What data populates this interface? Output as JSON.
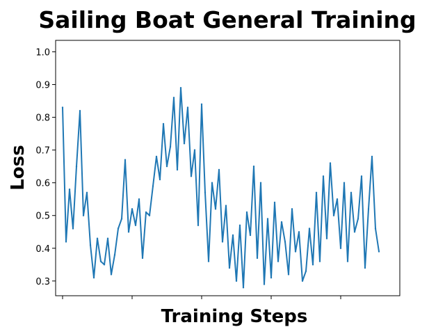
{
  "chart_data": {
    "type": "line",
    "title": "Sailing Boat General Training",
    "xlabel": "Training Steps",
    "ylabel": "Loss",
    "ylim": [
      0.255,
      1.035
    ],
    "xlim": [
      -10,
      485
    ],
    "yticks": [
      0.3,
      0.4,
      0.5,
      0.6,
      0.7,
      0.8,
      0.9,
      1.0
    ],
    "ytick_labels": [
      "0.3",
      "0.4",
      "0.5",
      "0.6",
      "0.7",
      "0.8",
      "0.9",
      "1.0"
    ],
    "xticks": [
      0,
      100,
      200,
      300,
      400
    ],
    "xtick_labels": [
      "",
      "",
      "",
      "",
      ""
    ],
    "grid": false,
    "series": [
      {
        "color": "#1f77b4",
        "x": [
          0,
          5,
          10,
          15,
          20,
          25,
          30,
          35,
          40,
          45,
          50,
          55,
          60,
          65,
          70,
          75,
          80,
          85,
          90,
          95,
          100,
          105,
          110,
          115,
          120,
          125,
          130,
          135,
          140,
          145,
          150,
          155,
          160,
          165,
          170,
          175,
          180,
          185,
          190,
          195,
          200,
          205,
          210,
          215,
          220,
          225,
          230,
          235,
          240,
          245,
          250,
          255,
          260,
          265,
          270,
          275,
          280,
          285,
          290,
          295,
          300,
          305,
          310,
          315,
          320,
          325,
          330,
          335,
          340,
          345,
          350,
          355,
          360,
          365,
          370,
          375,
          380,
          385,
          390,
          395,
          400,
          405,
          410,
          415,
          420,
          425,
          430,
          435,
          440,
          445,
          450,
          455
        ],
        "y": [
          0.83,
          0.42,
          0.58,
          0.46,
          0.65,
          0.82,
          0.5,
          0.57,
          0.41,
          0.31,
          0.43,
          0.36,
          0.35,
          0.43,
          0.32,
          0.38,
          0.46,
          0.49,
          0.67,
          0.45,
          0.52,
          0.47,
          0.55,
          0.37,
          0.51,
          0.5,
          0.59,
          0.68,
          0.61,
          0.78,
          0.65,
          0.71,
          0.86,
          0.64,
          0.89,
          0.72,
          0.83,
          0.62,
          0.7,
          0.47,
          0.84,
          0.57,
          0.36,
          0.6,
          0.52,
          0.64,
          0.42,
          0.53,
          0.34,
          0.44,
          0.3,
          0.47,
          0.28,
          0.51,
          0.44,
          0.65,
          0.37,
          0.6,
          0.29,
          0.49,
          0.31,
          0.54,
          0.36,
          0.48,
          0.42,
          0.32,
          0.52,
          0.39,
          0.45,
          0.3,
          0.33,
          0.46,
          0.35,
          0.57,
          0.36,
          0.62,
          0.43,
          0.66,
          0.5,
          0.55,
          0.4,
          0.6,
          0.36,
          0.57,
          0.45,
          0.49,
          0.62,
          0.34,
          0.52,
          0.68,
          0.46,
          0.39
        ]
      }
    ]
  }
}
